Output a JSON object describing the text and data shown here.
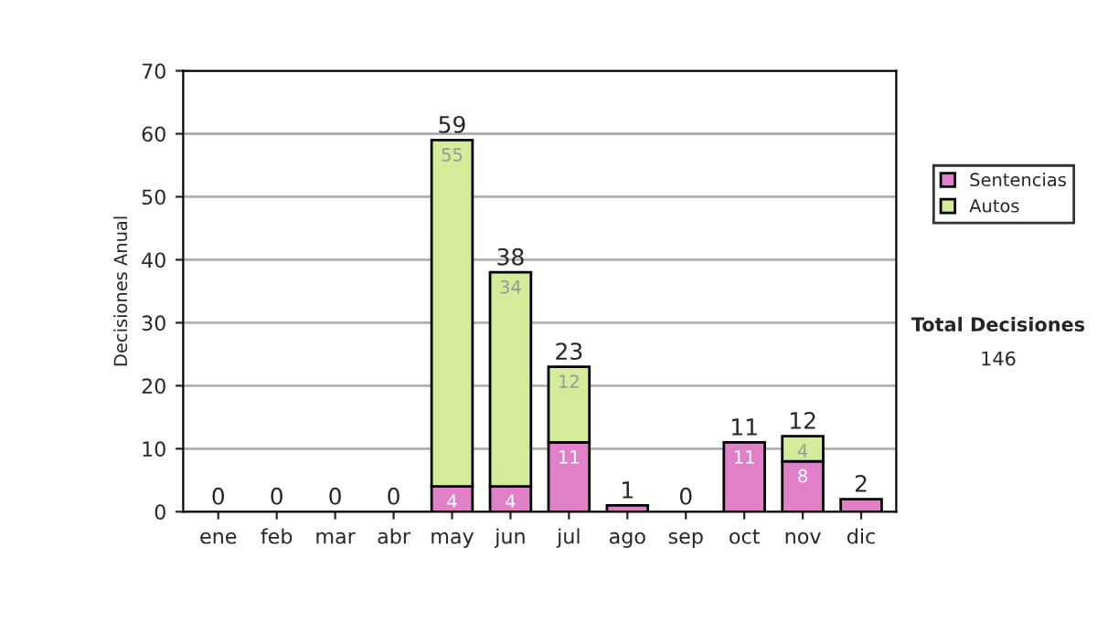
{
  "chart_data": {
    "type": "bar",
    "stacked": true,
    "ylabel": "Decisiones Anual",
    "categories": [
      "ene",
      "feb",
      "mar",
      "abr",
      "may",
      "jun",
      "jul",
      "ago",
      "sep",
      "oct",
      "nov",
      "dic"
    ],
    "series": [
      {
        "name": "Sentencias",
        "color": "#e080c8",
        "values": [
          0,
          0,
          0,
          0,
          4,
          4,
          11,
          1,
          0,
          11,
          8,
          2
        ],
        "value_labels": [
          null,
          null,
          null,
          null,
          "4",
          "4",
          "11",
          null,
          null,
          "11",
          "8",
          null
        ]
      },
      {
        "name": "Autos",
        "color": "#d4ec9a",
        "values": [
          0,
          0,
          0,
          0,
          55,
          34,
          12,
          0,
          0,
          0,
          4,
          0
        ],
        "value_labels": [
          null,
          null,
          null,
          null,
          "55",
          "34",
          "12",
          null,
          null,
          null,
          "4",
          null
        ]
      }
    ],
    "totals": [
      "0",
      "0",
      "0",
      "0",
      "59",
      "38",
      "23",
      "1",
      "0",
      "11",
      "12",
      "2"
    ],
    "ylim": [
      0,
      70
    ],
    "yticks": [
      0,
      10,
      20,
      30,
      40,
      50,
      60,
      70
    ],
    "grid": "y",
    "legend": "right",
    "annotations": [
      "Total Decisiones",
      "146"
    ]
  }
}
